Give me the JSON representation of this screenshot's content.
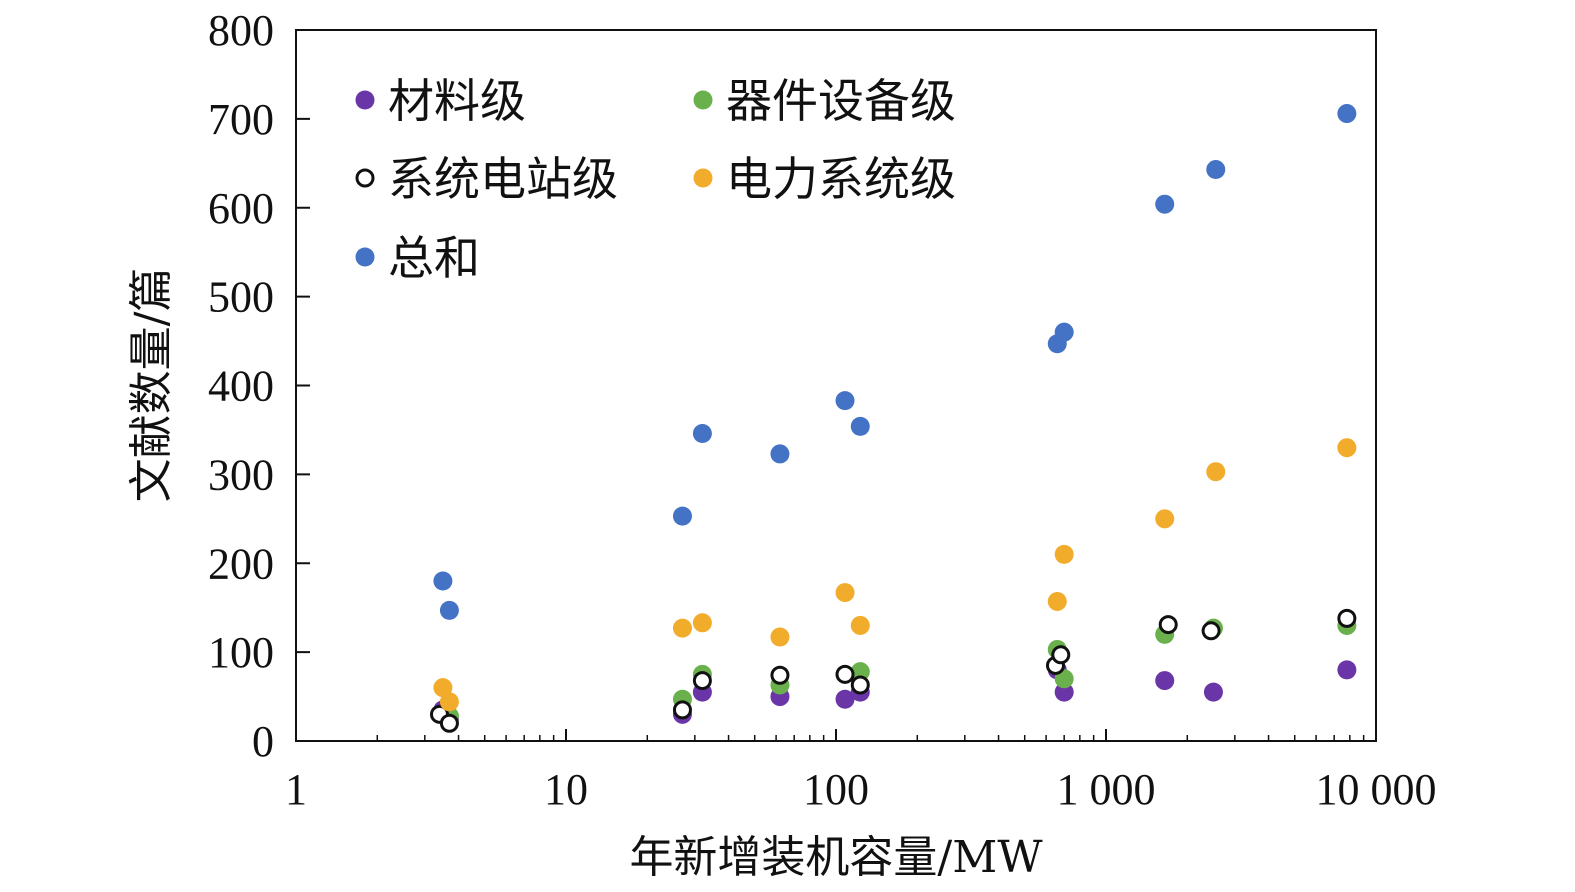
{
  "chart_data": {
    "type": "scatter",
    "x_scale": "log",
    "xlabel": "年新增装机容量/MW",
    "ylabel": "文献数量/篇",
    "xlim": [
      1,
      10000
    ],
    "ylim": [
      0,
      800
    ],
    "x_ticks": [
      {
        "value": 1,
        "label": "1"
      },
      {
        "value": 10,
        "label": "10"
      },
      {
        "value": 100,
        "label": "100"
      },
      {
        "value": 1000,
        "label": "1 000"
      },
      {
        "value": 10000,
        "label": "10 000"
      }
    ],
    "y_ticks": [
      0,
      100,
      200,
      300,
      400,
      500,
      600,
      700,
      800
    ],
    "grid": false,
    "legend_position": "top-left",
    "series": [
      {
        "name": "材料级",
        "marker": "filled",
        "color": "#6a35a6",
        "points": [
          [
            3.5,
            35
          ],
          [
            3.7,
            25
          ],
          [
            27,
            30
          ],
          [
            32,
            55
          ],
          [
            62,
            50
          ],
          [
            108,
            47
          ],
          [
            123,
            55
          ],
          [
            660,
            80
          ],
          [
            700,
            55
          ],
          [
            1650,
            68
          ],
          [
            2500,
            55
          ],
          [
            7800,
            80
          ]
        ]
      },
      {
        "name": "器件设备级",
        "marker": "filled",
        "color": "#6ab04c",
        "points": [
          [
            3.5,
            30
          ],
          [
            3.7,
            28
          ],
          [
            27,
            47
          ],
          [
            32,
            75
          ],
          [
            62,
            63
          ],
          [
            108,
            75
          ],
          [
            123,
            78
          ],
          [
            660,
            103
          ],
          [
            700,
            70
          ],
          [
            1650,
            120
          ],
          [
            2500,
            127
          ],
          [
            7800,
            130
          ]
        ]
      },
      {
        "name": "系统电站级",
        "marker": "open",
        "color": "#111111",
        "points": [
          [
            3.4,
            30
          ],
          [
            3.7,
            20
          ],
          [
            27,
            35
          ],
          [
            32,
            68
          ],
          [
            62,
            74
          ],
          [
            108,
            75
          ],
          [
            123,
            63
          ],
          [
            650,
            85
          ],
          [
            680,
            97
          ],
          [
            1700,
            131
          ],
          [
            2450,
            124
          ],
          [
            7800,
            138
          ]
        ]
      },
      {
        "name": "电力系统级",
        "marker": "filled",
        "color": "#f2ac2b",
        "points": [
          [
            3.5,
            60
          ],
          [
            3.7,
            44
          ],
          [
            27,
            127
          ],
          [
            32,
            133
          ],
          [
            62,
            117
          ],
          [
            108,
            167
          ],
          [
            123,
            130
          ],
          [
            660,
            157
          ],
          [
            700,
            210
          ],
          [
            1650,
            250
          ],
          [
            2550,
            303
          ],
          [
            7800,
            330
          ]
        ]
      },
      {
        "name": "总和",
        "marker": "filled",
        "color": "#4472c4",
        "points": [
          [
            3.5,
            180
          ],
          [
            3.7,
            147
          ],
          [
            27,
            253
          ],
          [
            32,
            346
          ],
          [
            62,
            323
          ],
          [
            108,
            383
          ],
          [
            123,
            354
          ],
          [
            660,
            447
          ],
          [
            700,
            460
          ],
          [
            1650,
            604
          ],
          [
            2550,
            643
          ],
          [
            7800,
            706
          ]
        ]
      }
    ]
  }
}
